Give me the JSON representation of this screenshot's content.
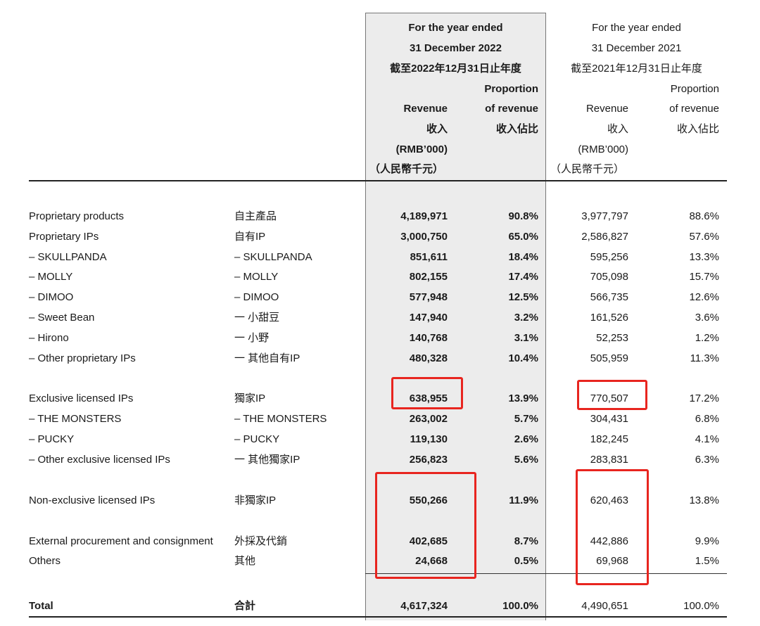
{
  "header": {
    "y2022": {
      "title_l1": "For the year ended",
      "title_l2": "31 December 2022",
      "title_l3": "截至2022年12月31日止年度",
      "revenue": "Revenue",
      "revenue_cn": "收入",
      "unit": "(RMB’000)",
      "unit_cn": "（人民幣千元）",
      "proportion": "Proportion",
      "of_revenue": "of revenue",
      "proportion_cn": "收入佔比"
    },
    "y2021": {
      "title_l1": "For the year ended",
      "title_l2": "31 December 2021",
      "title_l3": "截至2021年12月31日止年度",
      "revenue": "Revenue",
      "revenue_cn": "收入",
      "unit": "(RMB’000)",
      "unit_cn": "（人民幣千元）",
      "proportion": "Proportion",
      "of_revenue": "of revenue",
      "proportion_cn": "收入佔比"
    }
  },
  "rows": [
    {
      "en": "Proprietary products",
      "cn": "自主產品",
      "rev22": "4,189,971",
      "pct22": "90.8%",
      "rev21": "3,977,797",
      "pct21": "88.6%"
    },
    {
      "en": "Proprietary IPs",
      "cn": "自有IP",
      "rev22": "3,000,750",
      "pct22": "65.0%",
      "rev21": "2,586,827",
      "pct21": "57.6%"
    },
    {
      "en": "– SKULLPANDA",
      "cn": "– SKULLPANDA",
      "rev22": "851,611",
      "pct22": "18.4%",
      "rev21": "595,256",
      "pct21": "13.3%"
    },
    {
      "en": "– MOLLY",
      "cn": "– MOLLY",
      "rev22": "802,155",
      "pct22": "17.4%",
      "rev21": "705,098",
      "pct21": "15.7%"
    },
    {
      "en": "– DIMOO",
      "cn": "– DIMOO",
      "rev22": "577,948",
      "pct22": "12.5%",
      "rev21": "566,735",
      "pct21": "12.6%"
    },
    {
      "en": "– Sweet Bean",
      "cn": "一 小甜豆",
      "rev22": "147,940",
      "pct22": "3.2%",
      "rev21": "161,526",
      "pct21": "3.6%"
    },
    {
      "en": "– Hirono",
      "cn": "一 小野",
      "rev22": "140,768",
      "pct22": "3.1%",
      "rev21": "52,253",
      "pct21": "1.2%"
    },
    {
      "en": "– Other proprietary IPs",
      "cn": "一 其他自有IP",
      "rev22": "480,328",
      "pct22": "10.4%",
      "rev21": "505,959",
      "pct21": "11.3%"
    },
    {
      "en": "Exclusive licensed IPs",
      "cn": "獨家IP",
      "rev22": "638,955",
      "pct22": "13.9%",
      "rev21": "770,507",
      "pct21": "17.2%"
    },
    {
      "en": "– THE MONSTERS",
      "cn": "– THE MONSTERS",
      "rev22": "263,002",
      "pct22": "5.7%",
      "rev21": "304,431",
      "pct21": "6.8%"
    },
    {
      "en": "– PUCKY",
      "cn": "– PUCKY",
      "rev22": "119,130",
      "pct22": "2.6%",
      "rev21": "182,245",
      "pct21": "4.1%"
    },
    {
      "en": "– Other exclusive licensed IPs",
      "cn": "一 其他獨家IP",
      "rev22": "256,823",
      "pct22": "5.6%",
      "rev21": "283,831",
      "pct21": "6.3%"
    },
    {
      "en": "Non-exclusive licensed IPs",
      "cn": "非獨家IP",
      "rev22": "550,266",
      "pct22": "11.9%",
      "rev21": "620,463",
      "pct21": "13.8%"
    },
    {
      "en": "External procurement and consignment",
      "cn": "外採及代銷",
      "rev22": "402,685",
      "pct22": "8.7%",
      "rev21": "442,886",
      "pct21": "9.9%"
    },
    {
      "en": "Others",
      "cn": "其他",
      "rev22": "24,668",
      "pct22": "0.5%",
      "rev21": "69,968",
      "pct21": "1.5%"
    }
  ],
  "total": {
    "en": "Total",
    "cn": "合計",
    "rev22": "4,617,324",
    "pct22": "100.0%",
    "rev21": "4,490,651",
    "pct21": "100.0%"
  },
  "colors": {
    "highlight_box": "#e8251f",
    "column_shade": "#ececec"
  }
}
